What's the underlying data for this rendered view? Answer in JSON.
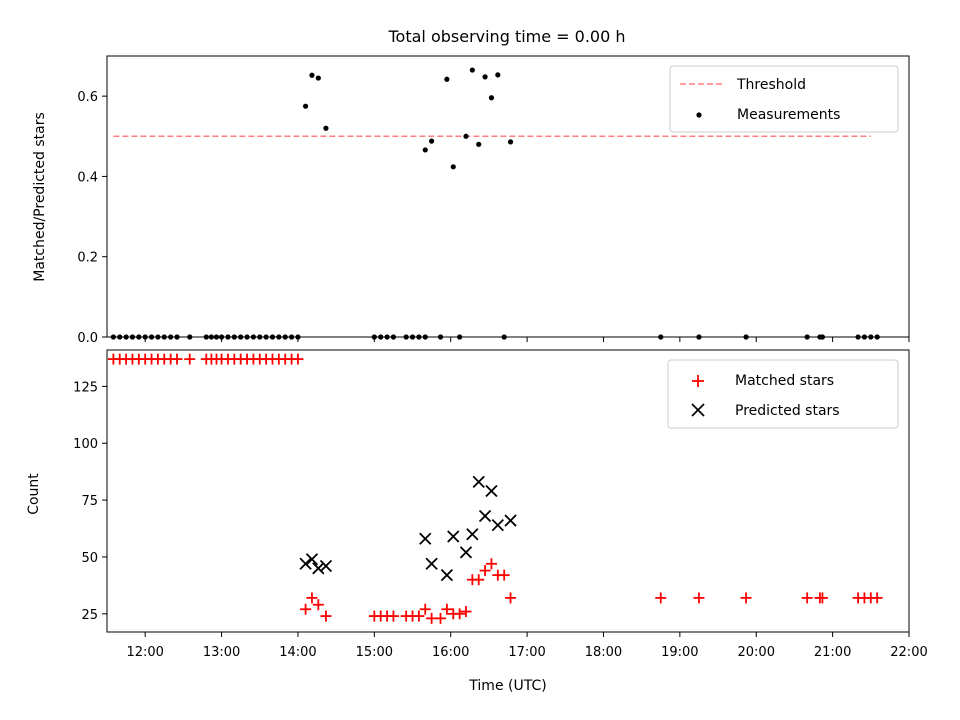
{
  "chart_data": [
    {
      "type": "scatter",
      "title": "Total observing time = 0.00 h",
      "xlabel": "",
      "ylabel": "Matched/Predicted stars",
      "xlim": [
        "11:30",
        "22:00"
      ],
      "ylim": [
        0,
        0.7
      ],
      "yticks": [
        "0.0",
        "0.2",
        "0.4",
        "0.6"
      ],
      "grid": false,
      "legend_position": "top-right",
      "threshold": {
        "name": "Threshold",
        "value": 0.5,
        "color": "#ff7f7f",
        "x_start": "11:35",
        "x_end": "21:30"
      },
      "series": [
        {
          "name": "Measurements",
          "color": "#000000",
          "points": [
            [
              "11:35",
              0
            ],
            [
              "11:40",
              0
            ],
            [
              "11:45",
              0
            ],
            [
              "11:50",
              0
            ],
            [
              "11:55",
              0
            ],
            [
              "12:00",
              0
            ],
            [
              "12:05",
              0
            ],
            [
              "12:10",
              0
            ],
            [
              "12:15",
              0
            ],
            [
              "12:20",
              0
            ],
            [
              "12:25",
              0
            ],
            [
              "12:35",
              0
            ],
            [
              "12:48",
              0
            ],
            [
              "12:52",
              0
            ],
            [
              "12:56",
              0
            ],
            [
              "13:00",
              0
            ],
            [
              "13:05",
              0
            ],
            [
              "13:10",
              0
            ],
            [
              "13:15",
              0
            ],
            [
              "13:20",
              0
            ],
            [
              "13:25",
              0
            ],
            [
              "13:30",
              0
            ],
            [
              "13:35",
              0
            ],
            [
              "13:40",
              0
            ],
            [
              "13:45",
              0
            ],
            [
              "13:50",
              0
            ],
            [
              "13:55",
              0
            ],
            [
              "14:00",
              0
            ],
            [
              "14:06",
              0.575
            ],
            [
              "14:11",
              0.652
            ],
            [
              "14:16",
              0.645
            ],
            [
              "14:22",
              0.52
            ],
            [
              "15:00",
              0
            ],
            [
              "15:05",
              0
            ],
            [
              "15:10",
              0
            ],
            [
              "15:15",
              0
            ],
            [
              "15:25",
              0
            ],
            [
              "15:30",
              0
            ],
            [
              "15:35",
              0
            ],
            [
              "15:40",
              0
            ],
            [
              "15:52",
              0
            ],
            [
              "15:40",
              0.466
            ],
            [
              "15:45",
              0.488
            ],
            [
              "15:57",
              0.642
            ],
            [
              "16:02",
              0.424
            ],
            [
              "16:07",
              0
            ],
            [
              "16:12",
              0.5
            ],
            [
              "16:17",
              0.665
            ],
            [
              "16:22",
              0.48
            ],
            [
              "16:27",
              0.648
            ],
            [
              "16:32",
              0.596
            ],
            [
              "16:37",
              0.653
            ],
            [
              "16:42",
              0
            ],
            [
              "16:47",
              0.486
            ],
            [
              "18:45",
              0
            ],
            [
              "19:15",
              0
            ],
            [
              "19:52",
              0
            ],
            [
              "20:40",
              0
            ],
            [
              "20:50",
              0
            ],
            [
              "20:52",
              0
            ],
            [
              "21:20",
              0
            ],
            [
              "21:25",
              0
            ],
            [
              "21:30",
              0
            ],
            [
              "21:35",
              0
            ]
          ]
        }
      ]
    },
    {
      "type": "scatter",
      "title": "",
      "xlabel": "Time (UTC)",
      "ylabel": "Count",
      "xlim": [
        "11:30",
        "22:00"
      ],
      "xticks": [
        "12:00",
        "13:00",
        "14:00",
        "15:00",
        "16:00",
        "17:00",
        "18:00",
        "19:00",
        "20:00",
        "21:00",
        "22:00"
      ],
      "ylim": [
        17,
        141
      ],
      "yticks": [
        "25",
        "50",
        "75",
        "100",
        "125"
      ],
      "grid": false,
      "legend_position": "top-right",
      "series": [
        {
          "name": "Matched stars",
          "color": "#ff0000",
          "marker": "plus",
          "points": [
            [
              "11:35",
              137
            ],
            [
              "11:40",
              137
            ],
            [
              "11:45",
              137
            ],
            [
              "11:50",
              137
            ],
            [
              "11:55",
              137
            ],
            [
              "12:00",
              137
            ],
            [
              "12:05",
              137
            ],
            [
              "12:10",
              137
            ],
            [
              "12:15",
              137
            ],
            [
              "12:20",
              137
            ],
            [
              "12:25",
              137
            ],
            [
              "12:35",
              137
            ],
            [
              "12:48",
              137
            ],
            [
              "12:52",
              137
            ],
            [
              "12:56",
              137
            ],
            [
              "13:00",
              137
            ],
            [
              "13:05",
              137
            ],
            [
              "13:10",
              137
            ],
            [
              "13:15",
              137
            ],
            [
              "13:20",
              137
            ],
            [
              "13:25",
              137
            ],
            [
              "13:30",
              137
            ],
            [
              "13:35",
              137
            ],
            [
              "13:40",
              137
            ],
            [
              "13:45",
              137
            ],
            [
              "13:50",
              137
            ],
            [
              "13:55",
              137
            ],
            [
              "14:00",
              137
            ],
            [
              "14:06",
              27
            ],
            [
              "14:11",
              32
            ],
            [
              "14:16",
              29
            ],
            [
              "14:22",
              24
            ],
            [
              "15:00",
              24
            ],
            [
              "15:05",
              24
            ],
            [
              "15:10",
              24
            ],
            [
              "15:15",
              24
            ],
            [
              "15:25",
              24
            ],
            [
              "15:30",
              24
            ],
            [
              "15:35",
              24
            ],
            [
              "15:40",
              27
            ],
            [
              "15:45",
              23
            ],
            [
              "15:52",
              23
            ],
            [
              "15:57",
              27
            ],
            [
              "16:02",
              25
            ],
            [
              "16:07",
              25
            ],
            [
              "16:12",
              26
            ],
            [
              "16:17",
              40
            ],
            [
              "16:22",
              40
            ],
            [
              "16:27",
              44
            ],
            [
              "16:32",
              47
            ],
            [
              "16:37",
              42
            ],
            [
              "16:42",
              42
            ],
            [
              "16:47",
              32
            ],
            [
              "18:45",
              32
            ],
            [
              "19:15",
              32
            ],
            [
              "19:52",
              32
            ],
            [
              "20:40",
              32
            ],
            [
              "20:50",
              32
            ],
            [
              "20:52",
              32
            ],
            [
              "21:20",
              32
            ],
            [
              "21:25",
              32
            ],
            [
              "21:30",
              32
            ],
            [
              "21:35",
              32
            ]
          ]
        },
        {
          "name": "Predicted stars",
          "color": "#000000",
          "marker": "x",
          "points": [
            [
              "14:06",
              47
            ],
            [
              "14:11",
              49
            ],
            [
              "14:16",
              45
            ],
            [
              "14:22",
              46
            ],
            [
              "15:40",
              58
            ],
            [
              "15:45",
              47
            ],
            [
              "15:57",
              42
            ],
            [
              "16:02",
              59
            ],
            [
              "16:12",
              52
            ],
            [
              "16:17",
              60
            ],
            [
              "16:22",
              83
            ],
            [
              "16:27",
              68
            ],
            [
              "16:32",
              79
            ],
            [
              "16:37",
              64
            ],
            [
              "16:47",
              66
            ]
          ]
        }
      ]
    }
  ]
}
